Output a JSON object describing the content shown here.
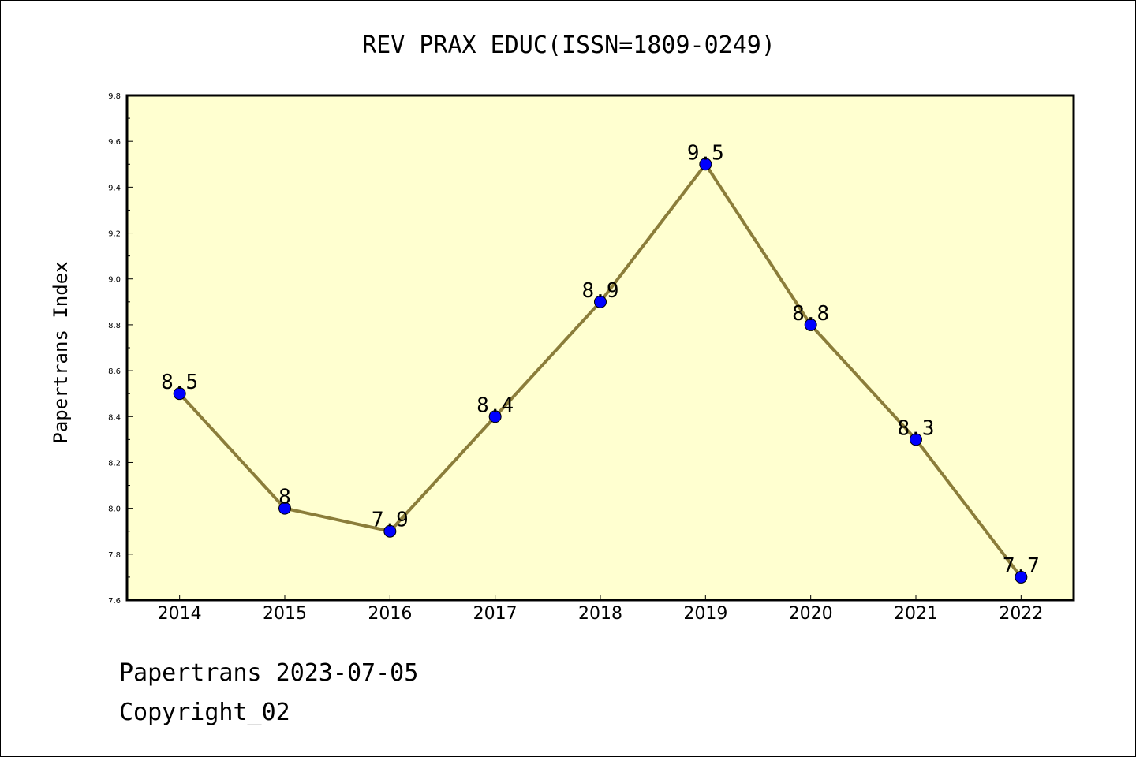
{
  "chart_data": {
    "type": "line",
    "title": "REV PRAX EDUC(ISSN=1809-0249)",
    "xlabel": "",
    "ylabel": "Papertrans Index",
    "categories": [
      "2014",
      "2015",
      "2016",
      "2017",
      "2018",
      "2019",
      "2020",
      "2021",
      "2022"
    ],
    "series": [
      {
        "values": [
          8.5,
          8.0,
          7.9,
          8.4,
          8.9,
          9.5,
          8.8,
          8.3,
          7.7
        ],
        "data_labels": [
          "8.5",
          "8",
          "7.9",
          "8.4",
          "8.9",
          "9.5",
          "8.8",
          "8.3",
          "7.7"
        ],
        "line_color": "#8b7d3a",
        "marker_color": "#0000ff"
      }
    ],
    "ylim": [
      7.6,
      9.8
    ],
    "yticks": [
      "7.6",
      "7.8",
      "8.0",
      "8.2",
      "8.4",
      "8.6",
      "8.8",
      "9.0",
      "9.2",
      "9.4",
      "9.6",
      "9.8"
    ],
    "plot_background": "#ffffd0",
    "grid": false,
    "legend": "none"
  },
  "footer": {
    "date_line": "Papertrans 2023-07-05",
    "copyright_line": "Copyright_02"
  }
}
